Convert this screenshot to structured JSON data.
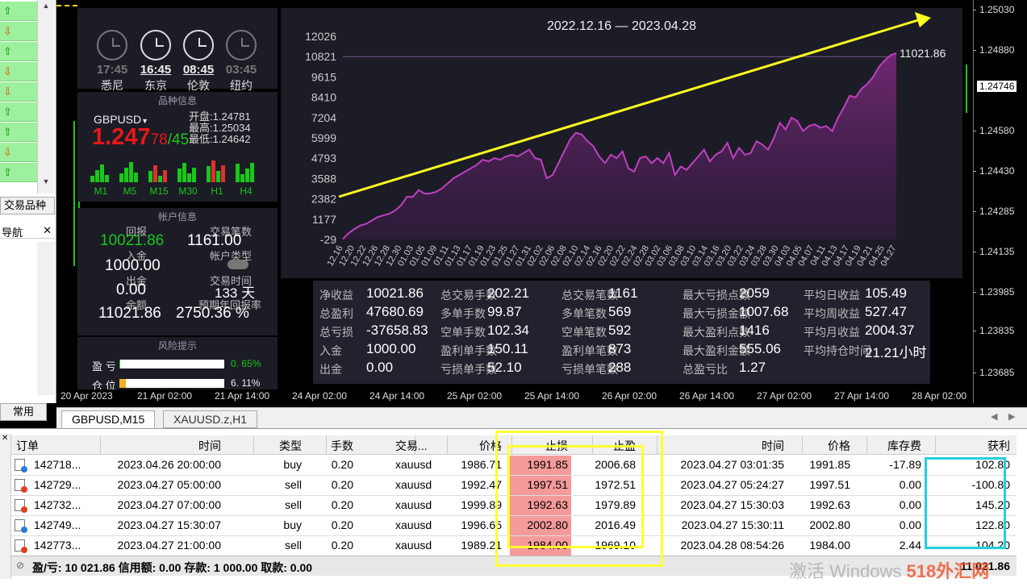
{
  "left_panel": {
    "trade_tab": "交易品种",
    "nav_label": "导航",
    "common_tab": "常用",
    "arrows": [
      "up",
      "dn",
      "up",
      "dn",
      "dn",
      "up",
      "up",
      "dn",
      "up"
    ]
  },
  "y_axis": {
    "ticks": [
      "1.25030",
      "1.24880",
      "1.24580",
      "1.24430",
      "1.24285",
      "1.24135",
      "1.23985",
      "1.23835",
      "1.23685"
    ],
    "current_price": "1.24746"
  },
  "x_axis": {
    "ticks": [
      "20 Apr 2023",
      "21 Apr 02:00",
      "21 Apr 14:00",
      "24 Apr 02:00",
      "24 Apr 14:00",
      "25 Apr 02:00",
      "25 Apr 14:00",
      "26 Apr 02:00",
      "26 Apr 14:00",
      "27 Apr 02:00",
      "27 Apr 14:00",
      "28 Apr 02:00"
    ]
  },
  "clocks": [
    {
      "time": "17:45",
      "city": "悉尼"
    },
    {
      "time": "16:45",
      "city": "东京"
    },
    {
      "time": "08:45",
      "city": "伦敦"
    },
    {
      "time": "03:45",
      "city": "纽约"
    }
  ],
  "symbol_info": {
    "title": "品种信息",
    "symbol": "GBPUSD",
    "price_main": "1.247",
    "price_small_a": "78",
    "price_small_b": "45",
    "open_label": "开盘:",
    "open": "1.24781",
    "high_label": "最高:",
    "high": "1.25034",
    "low_label": "最低:",
    "low": "1.24642",
    "timeframes": [
      "M1",
      "M5",
      "M15",
      "M30",
      "H1",
      "H4"
    ]
  },
  "account_info": {
    "title": "帐户信息",
    "return_label": "回报",
    "return_value": "10021.86",
    "trades_label": "交易笔数",
    "trades_value": "1161.00",
    "deposit_label": "入金",
    "deposit_value": "1000.00",
    "account_type_label": "帐户类型",
    "withdraw_label": "出金",
    "withdraw_value": "0.00",
    "trade_time_label": "交易时间",
    "trade_time_value": "133 天",
    "balance_label": "余额",
    "balance_value": "11021.86",
    "annual_label": "预期年回报率",
    "annual_value": "2750.36 %"
  },
  "risk": {
    "title": "风险提示",
    "pl_label": "盈 亏",
    "pl_value": "0. 65%",
    "pos_label": "仓 位",
    "pos_value": "6. 11%",
    "pl_fraction": 0.0065,
    "pos_fraction": 0.0611
  },
  "equity_chart": {
    "date_range": "2022.12.16 — 2023.04.28",
    "last_value": "11021.86"
  },
  "chart_data": {
    "type": "area",
    "title": "2022.12.16 — 2023.04.28",
    "y_ticks": [
      12026,
      10821,
      9615,
      8410,
      7204,
      5999,
      4793,
      3588,
      2382,
      1177,
      -29
    ],
    "ylim": [
      -29,
      12026
    ],
    "x": [
      "12.16",
      "12.19",
      "12.20",
      "12.21",
      "12.22",
      "12.23",
      "12.26",
      "12.27",
      "12.28",
      "12.29",
      "12.30",
      "01.02",
      "01.03",
      "01.04",
      "01.05",
      "01.06",
      "01.09",
      "01.10",
      "01.11",
      "01.12",
      "01.13",
      "01.16",
      "01.17",
      "01.18",
      "01.19",
      "01.20",
      "01.23",
      "01.24",
      "01.25",
      "01.26",
      "01.27",
      "01.30",
      "01.31",
      "02.01",
      "02.02",
      "02.03",
      "02.06",
      "02.07",
      "02.08",
      "02.09",
      "02.10",
      "02.13",
      "02.14",
      "02.15",
      "02.16",
      "02.17",
      "02.20",
      "02.21",
      "02.22",
      "02.23",
      "02.24",
      "02.27",
      "02.28",
      "03.01",
      "03.02",
      "03.03",
      "03.06",
      "03.07",
      "03.08",
      "03.09",
      "03.10",
      "03.13",
      "03.14",
      "03.15",
      "03.16",
      "03.17",
      "03.20",
      "03.21",
      "03.22",
      "03.23",
      "03.24",
      "03.27",
      "03.28",
      "03.29",
      "03.30",
      "03.31",
      "04.03",
      "04.04",
      "04.05",
      "04.06",
      "04.07",
      "04.10",
      "04.11",
      "04.12",
      "04.13",
      "04.14",
      "04.17",
      "04.18",
      "04.19",
      "04.20",
      "04.21",
      "04.24",
      "04.25",
      "04.26",
      "04.27",
      "04.28"
    ],
    "x_tick_labels": [
      "12.16",
      "12.20",
      "12.22",
      "12.26",
      "12.28",
      "12.30",
      "01.03",
      "01.05",
      "01.09",
      "01.11",
      "01.13",
      "01.17",
      "01.19",
      "01.23",
      "01.25",
      "01.27",
      "01.31",
      "02.02",
      "02.06",
      "02.08",
      "02.10",
      "02.14",
      "02.16",
      "02.20",
      "02.22",
      "02.24",
      "02.28",
      "03.02",
      "03.06",
      "03.08",
      "03.10",
      "03.14",
      "03.16",
      "03.20",
      "03.22",
      "03.24",
      "03.28",
      "03.30",
      "04.03",
      "04.05",
      "04.07",
      "04.11",
      "04.13",
      "04.17",
      "04.19",
      "04.21",
      "04.25",
      "04.27"
    ],
    "series": [
      {
        "values": [
          0,
          350,
          600,
          800,
          900,
          1100,
          1300,
          1400,
          1500,
          1700,
          2000,
          2500,
          2500,
          2900,
          2700,
          2700,
          2800,
          3000,
          3300,
          3600,
          3800,
          4000,
          4200,
          4400,
          4700,
          4600,
          4800,
          4700,
          4900,
          5000,
          4900,
          5100,
          5300,
          4800,
          4700,
          3600,
          3800,
          4500,
          5200,
          5900,
          6300,
          6200,
          5800,
          5500,
          4900,
          4500,
          5000,
          4800,
          5200,
          4200,
          4000,
          4800,
          4900,
          4500,
          4800,
          4500,
          5100,
          3800,
          4300,
          4100,
          4500,
          4900,
          5300,
          4600,
          5000,
          5200,
          5700,
          4800,
          5400,
          5000,
          5100,
          5800,
          5600,
          5300,
          6000,
          6900,
          6500,
          7200,
          7000,
          6400,
          6700,
          6800,
          6600,
          6700,
          6400,
          7200,
          7800,
          8500,
          8400,
          8900,
          9200,
          9600,
          10200,
          10600,
          10900,
          11021.86
        ]
      }
    ]
  },
  "stats": [
    {
      "label": "净收益",
      "value": "10021.86"
    },
    {
      "label": "总盈利",
      "value": "47680.69"
    },
    {
      "label": "总亏损",
      "value": "-37658.83"
    },
    {
      "label": "入金",
      "value": "1000.00"
    },
    {
      "label": "出金",
      "value": "0.00"
    },
    {
      "label": "总交易手数",
      "value": "202.21"
    },
    {
      "label": "多单手数",
      "value": "99.87"
    },
    {
      "label": "空单手数",
      "value": "102.34"
    },
    {
      "label": "盈利单手数",
      "value": "150.11"
    },
    {
      "label": "亏损单手数",
      "value": "52.10"
    },
    {
      "label": "总交易笔数",
      "value": "1161"
    },
    {
      "label": "多单笔数",
      "value": "569"
    },
    {
      "label": "空单笔数",
      "value": "592"
    },
    {
      "label": "盈利单笔数",
      "value": "873"
    },
    {
      "label": "亏损单笔数",
      "value": "288"
    },
    {
      "label": "最大亏损点数",
      "value": "2059"
    },
    {
      "label": "最大亏损金额",
      "value": "1007.68"
    },
    {
      "label": "最大盈利点数",
      "value": "1416"
    },
    {
      "label": "最大盈利金额",
      "value": "555.06"
    },
    {
      "label": "总盈亏比",
      "value": "1.27"
    },
    {
      "label": "平均日收益",
      "value": "105.49"
    },
    {
      "label": "平均周收益",
      "value": "527.47"
    },
    {
      "label": "平均月收益",
      "value": "2004.37"
    },
    {
      "label": "平均持仓时间",
      "value": "21.21小时"
    }
  ],
  "chart_tabs": [
    "GBPUSD,M15",
    "XAUUSD.z,H1"
  ],
  "table": {
    "headers": [
      "订单",
      "时间",
      "类型",
      "手数",
      "交易...",
      "价格",
      "止损",
      "止盈",
      "时间",
      "价格",
      "库存费",
      "获利"
    ],
    "rows": [
      {
        "order": "142718...",
        "open_time": "2023.04.26 20:00:00",
        "type": "buy",
        "lots": "0.20",
        "symbol": "xauusd",
        "price": "1986.71",
        "sl": "1991.85",
        "tp": "2006.68",
        "close_time": "2023.04.27 03:01:35",
        "close_price": "1991.85",
        "swap": "-17.89",
        "profit": "102.80",
        "dot": "#2a7ae0"
      },
      {
        "order": "142729...",
        "open_time": "2023.04.27 05:00:00",
        "type": "sell",
        "lots": "0.20",
        "symbol": "xauusd",
        "price": "1992.47",
        "sl": "1997.51",
        "tp": "1972.51",
        "close_time": "2023.04.27 05:24:27",
        "close_price": "1997.51",
        "swap": "0.00",
        "profit": "-100.80",
        "dot": "#e04020"
      },
      {
        "order": "142732...",
        "open_time": "2023.04.27 07:00:00",
        "type": "sell",
        "lots": "0.20",
        "symbol": "xauusd",
        "price": "1999.89",
        "sl": "1992.63",
        "tp": "1979.89",
        "close_time": "2023.04.27 15:30:03",
        "close_price": "1992.63",
        "swap": "0.00",
        "profit": "145.20",
        "dot": "#e04020"
      },
      {
        "order": "142749...",
        "open_time": "2023.04.27 15:30:07",
        "type": "buy",
        "lots": "0.20",
        "symbol": "xauusd",
        "price": "1996.65",
        "sl": "2002.80",
        "tp": "2016.49",
        "close_time": "2023.04.27 15:30:11",
        "close_price": "2002.80",
        "swap": "0.00",
        "profit": "122.80",
        "dot": "#2a7ae0"
      },
      {
        "order": "142773...",
        "open_time": "2023.04.27 21:00:00",
        "type": "sell",
        "lots": "0.20",
        "symbol": "xauusd",
        "price": "1989.21",
        "sl": "1984.00",
        "tp": "1969.10",
        "close_time": "2023.04.28 08:54:26",
        "close_price": "1984.00",
        "swap": "2.44",
        "profit": "104.20",
        "dot": "#e04020"
      }
    ]
  },
  "balance_bar": "盈/亏: 10 021.86  信用额: 0.00  存款: 1 000.00  取款: 0.00",
  "balance_bar_right": "11 021.86",
  "watermark": {
    "a": "激活 Windows",
    "b": "518外汇网"
  }
}
